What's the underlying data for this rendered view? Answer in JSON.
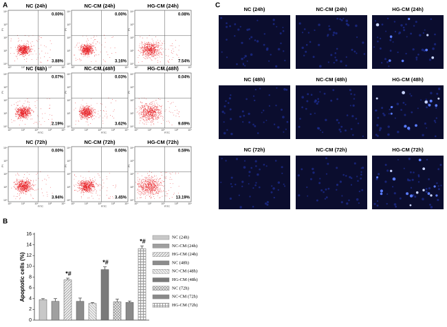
{
  "panel_labels": [
    "A",
    "B",
    "C"
  ],
  "flow_axes": {
    "x_label": "FITC",
    "y_label": "PI",
    "tick_labels": [
      "10⁰",
      "10¹",
      "10²",
      "10³",
      "10⁴"
    ]
  },
  "flow_panels": [
    {
      "title": "NC (24h)",
      "upper_right": "0.00%",
      "lower_right": "3.88%"
    },
    {
      "title": "NC-CM (24h)",
      "upper_right": "0.00%",
      "lower_right": "3.16%"
    },
    {
      "title": "HG-CM (24h)",
      "upper_right": "0.08%",
      "lower_right": "7.54%"
    },
    {
      "title": "NC (48h)",
      "upper_right": "0.07%",
      "lower_right": "2.19%"
    },
    {
      "title": "NC-CM (48h)",
      "upper_right": "0.03%",
      "lower_right": "3.62%"
    },
    {
      "title": "HG-CM (48h)",
      "upper_right": "0.04%",
      "lower_right": "9.69%"
    },
    {
      "title": "NC (72h)",
      "upper_right": "0.00%",
      "lower_right": "3.94%"
    },
    {
      "title": "NC-CM (72h)",
      "upper_right": "0.00%",
      "lower_right": "3.45%"
    },
    {
      "title": "HG-CM (72h)",
      "upper_right": "0.59%",
      "lower_right": "13.19%"
    }
  ],
  "chart_data": {
    "type": "bar",
    "y_label": "Apoptotic cells (%)",
    "categories": [
      "NC (24h)",
      "NC-CM (24h)",
      "HG-CM (24h)",
      "NC (48h)",
      "NC-CM (48h)",
      "HG-CM (48h)",
      "NC (72h)",
      "NC-CM (72h)",
      "HG-CM (72h)"
    ],
    "values": [
      3.8,
      3.5,
      7.5,
      3.5,
      3.1,
      9.4,
      3.4,
      3.3,
      13.3
    ],
    "errors": [
      0.2,
      0.5,
      0.3,
      0.6,
      0.15,
      0.5,
      0.5,
      0.25,
      0.5
    ],
    "colors": [
      "#c8c8c8",
      "#a0a0a0",
      "#9a9a9a",
      "#8c8c8c",
      "#b0b0b0",
      "#7a7a7a",
      "#9a9a9a",
      "#8a8a8a",
      "#909090"
    ],
    "patterns": [
      "solid",
      "solid",
      "diagonal",
      "solid",
      "backslash",
      "solid",
      "crosshatch",
      "solid",
      "grid"
    ],
    "ylim": [
      0,
      16
    ],
    "yticks": [
      0,
      2,
      4,
      6,
      8,
      10,
      12,
      14,
      16
    ],
    "annotations": [
      {
        "index": 2,
        "text": "*#"
      },
      {
        "index": 5,
        "text": "*#"
      },
      {
        "index": 8,
        "text": "*#"
      }
    ],
    "legend": "right"
  },
  "image_panels": [
    {
      "title": "NC (24h)"
    },
    {
      "title": "NC-CM (24h)"
    },
    {
      "title": "HG-CM (24h)"
    },
    {
      "title": "NC (48h)"
    },
    {
      "title": "NC-CM (48h)"
    },
    {
      "title": "HG-CM (48h)"
    },
    {
      "title": "NC (72h)"
    },
    {
      "title": "NC-CM (72h)"
    },
    {
      "title": "HG-CM (72h)"
    }
  ]
}
